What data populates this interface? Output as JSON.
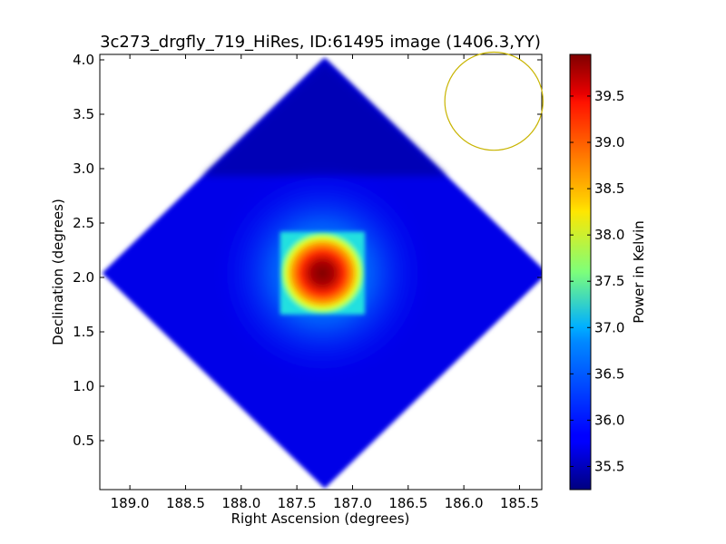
{
  "chart_data": {
    "type": "heatmap",
    "title": "3c273_drgfly_719_HiRes, ID:61495 image (1406.3,YY)",
    "xlabel": "Right Ascension (degrees)",
    "ylabel": "Declination (degrees)",
    "xlim": [
      189.27,
      185.3
    ],
    "ylim": [
      0.05,
      4.05
    ],
    "x_inverted": true,
    "xticks": [
      189.0,
      188.5,
      188.0,
      187.5,
      187.0,
      186.5,
      186.0,
      185.5
    ],
    "xtick_labels": [
      "189.0",
      "188.5",
      "188.0",
      "187.5",
      "187.0",
      "186.5",
      "186.0",
      "185.5"
    ],
    "yticks": [
      0.5,
      1.0,
      1.5,
      2.0,
      2.5,
      3.0,
      3.5,
      4.0
    ],
    "ytick_labels": [
      "0.5",
      "1.0",
      "1.5",
      "2.0",
      "2.5",
      "3.0",
      "3.5",
      "4.0"
    ],
    "colormap": "jet",
    "colorbar": {
      "label": "Power in Kelvin",
      "range": [
        35.25,
        39.95
      ],
      "ticks": [
        35.5,
        36.0,
        36.5,
        37.0,
        37.5,
        38.0,
        38.5,
        39.0,
        39.5
      ],
      "tick_labels": [
        "35.5",
        "36.0",
        "36.5",
        "37.0",
        "37.5",
        "38.0",
        "38.5",
        "39.0",
        "39.5"
      ]
    },
    "map_region": {
      "shape": "diamond",
      "center": [
        187.25,
        2.04
      ],
      "half_width_deg": 2.0,
      "half_height_deg": 1.98
    },
    "peak": {
      "ra": 187.27,
      "dec": 2.04,
      "value": 39.9,
      "square_half_width_deg": 0.38
    },
    "background_level": 35.6,
    "beam": {
      "shape": "circle",
      "ra": 185.73,
      "dec": 3.62,
      "radius_deg": 0.3,
      "color": "#c8b400"
    }
  }
}
